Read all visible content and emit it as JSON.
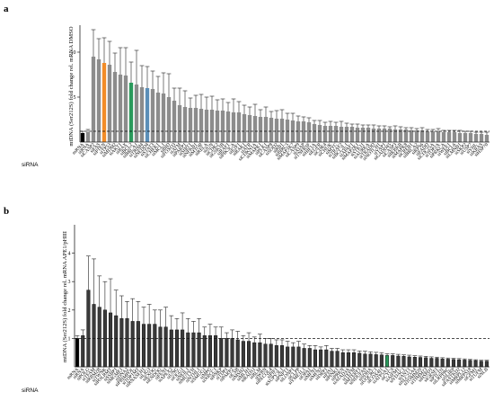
{
  "chart_data": [
    {
      "panel": "a",
      "type": "bar",
      "ylabel": "mtDNA (Ser212S) fold change rel. mRNA DMSO",
      "side_label": "siRNA",
      "ylim": [
        0,
        13
      ],
      "yticks": [
        5,
        10
      ],
      "reference_line": 1.2,
      "categories": [
        "mRNA",
        "siRNA",
        "siCASP2",
        "siFAS",
        "siPTEN",
        "siTP53",
        "siMDM2",
        "siAKT1",
        "siBAX",
        "siBCL2",
        "siBRCA1",
        "siTRIM4",
        "siNEDD4",
        "siSTAT3",
        "siCHEK1",
        "siMCL1",
        "siBID",
        "siFOXO3",
        "siATM",
        "siPARP1",
        "siSIRT1",
        "siNFKB1",
        "siMTOR",
        "siRELA",
        "siJUN",
        "siCDK2",
        "siGSK3B",
        "siRAF1",
        "siPIK3CA",
        "siE2F1",
        "siBAK1",
        "siATR",
        "siCDKN1A",
        "siMAPK1",
        "siPLK1",
        "siCASP8",
        "siSOD2",
        "siRB1",
        "siBIRC5",
        "siMAP3K7",
        "siCASP9",
        "siXIAP",
        "siTNFRSF",
        "siHIF1A",
        "siEGFR",
        "siCDK4",
        "siCHUK",
        "siMYC",
        "siTRAF2",
        "siBCL2L1",
        "siAPAF1",
        "siMAP2K1",
        "siSTK11",
        "siAURKA",
        "siTRADD",
        "siNOTCH1",
        "siYAP1",
        "siGADD45",
        "siCASP3",
        "siIKBKB",
        "siMAPK8",
        "siCREB1",
        "siBRCA2",
        "siRPS6",
        "siFADD",
        "siCDC25A",
        "siTOP2A",
        "siPRKCA",
        "siWEE1",
        "siBCL6",
        "siLMNB1",
        "siSKP2",
        "siUSP7",
        "siVHL",
        "siKRAS",
        "siHSP70"
      ],
      "values": [
        1.0,
        1.1,
        9.5,
        9.2,
        8.8,
        8.6,
        7.8,
        7.5,
        7.4,
        6.6,
        6.4,
        6.1,
        6.0,
        5.9,
        5.5,
        5.4,
        5.0,
        4.6,
        4.1,
        3.9,
        3.8,
        3.8,
        3.7,
        3.6,
        3.6,
        3.5,
        3.5,
        3.4,
        3.3,
        3.3,
        3.1,
        3.0,
        2.9,
        2.8,
        2.8,
        2.7,
        2.6,
        2.6,
        2.5,
        2.4,
        2.3,
        2.3,
        2.2,
        2.0,
        1.9,
        1.8,
        1.8,
        1.8,
        1.7,
        1.7,
        1.7,
        1.6,
        1.6,
        1.6,
        1.5,
        1.5,
        1.5,
        1.5,
        1.4,
        1.4,
        1.4,
        1.3,
        1.3,
        1.3,
        1.2,
        1.2,
        1.2,
        1.1,
        1.1,
        1.1,
        1.0,
        1.0,
        1.0,
        0.9,
        0.9,
        0.8
      ],
      "errors": [
        0.2,
        0.3,
        3.0,
        2.3,
        2.8,
        2.6,
        2.1,
        3.0,
        3.1,
        2.3,
        3.8,
        2.4,
        2.4,
        2.0,
        1.8,
        2.3,
        2.6,
        1.4,
        1.9,
        1.8,
        1.1,
        1.4,
        1.6,
        1.4,
        1.5,
        1.2,
        1.3,
        1.0,
        1.5,
        1.2,
        1.0,
        0.9,
        1.3,
        0.8,
        1.1,
        0.7,
        0.9,
        1.0,
        0.7,
        0.8,
        0.6,
        0.5,
        0.5,
        0.4,
        0.5,
        0.4,
        0.5,
        0.4,
        0.6,
        0.4,
        0.3,
        0.4,
        0.3,
        0.3,
        0.4,
        0.3,
        0.3,
        0.2,
        0.4,
        0.3,
        0.2,
        0.3,
        0.2,
        0.3,
        0.2,
        0.2,
        0.3,
        0.2,
        0.2,
        0.2,
        0.3,
        0.2,
        0.2,
        0.2,
        0.2,
        0.3
      ],
      "highlight": {
        "0": "#000000",
        "4": "#f28c28",
        "9": "#2a9a5c",
        "12": "#5b8fb8"
      },
      "bar_color": "#8c8c8c"
    },
    {
      "panel": "b",
      "type": "bar",
      "ylabel": "mtDNA (Ser212S) fold change rel. mRNA APE1/pHIII",
      "side_label": "siRNA",
      "ylim": [
        0,
        5
      ],
      "yticks": [
        1,
        2,
        3,
        4
      ],
      "reference_line": 1.0,
      "categories": [
        "mRNA",
        "siRNA",
        "siPOLG",
        "siTFAM",
        "siRRM2B",
        "siTWNK",
        "siPOLRMT",
        "siSSBP1",
        "siMGME1",
        "siDNA2",
        "siPRIMPOL",
        "siTOP1MT",
        "siRNASEH1",
        "siLIG3",
        "siEXOG",
        "siENDOG",
        "siFEN1",
        "siAPEX2",
        "siUNG",
        "siOGG1",
        "siNEIL1",
        "siMUTYH",
        "siNTHL1",
        "siSMUG1",
        "siMPG",
        "siXRCC1",
        "siPNKP",
        "siTDP1",
        "siPARP2",
        "siCSB",
        "siMSH2",
        "siMLH1",
        "siRAD51",
        "siBLM",
        "siWRN",
        "siRECQL4",
        "siPIF1",
        "siSUPV3L1",
        "siPNPT1",
        "siLONP1",
        "siCLPP",
        "siYME1L1",
        "siOPA1",
        "siMFN1",
        "siMFN2",
        "siDRP1",
        "siFIS1",
        "siPINK1",
        "siPRKN",
        "siATAD3A",
        "siTEFM",
        "siMTERF1",
        "siNDUFA9",
        "siSDHA",
        "siUQCRC1",
        "siCOX4I1",
        "siATP5A1",
        "siCYCS",
        "siAIFM1",
        "siVDAC1",
        "siANT1",
        "siSLC25A4",
        "siTOMM20",
        "siTIMM23",
        "siHSPD1",
        "siGRSF1",
        "siPTCD1",
        "siLRPPRC",
        "siSLIRP",
        "siFASTKD2",
        "siMRPL12",
        "siMRPS18",
        "siGFM1",
        "siTUFM",
        "siNLB"
      ],
      "values": [
        1.0,
        1.1,
        2.7,
        2.2,
        2.1,
        2.0,
        1.9,
        1.8,
        1.7,
        1.7,
        1.6,
        1.6,
        1.5,
        1.5,
        1.5,
        1.4,
        1.4,
        1.3,
        1.3,
        1.3,
        1.2,
        1.2,
        1.2,
        1.1,
        1.1,
        1.1,
        1.0,
        1.0,
        1.0,
        0.95,
        0.9,
        0.9,
        0.85,
        0.85,
        0.8,
        0.8,
        0.75,
        0.75,
        0.7,
        0.7,
        0.7,
        0.65,
        0.65,
        0.6,
        0.6,
        0.6,
        0.55,
        0.55,
        0.5,
        0.5,
        0.5,
        0.48,
        0.45,
        0.45,
        0.43,
        0.42,
        0.4,
        0.4,
        0.38,
        0.37,
        0.35,
        0.34,
        0.33,
        0.32,
        0.3,
        0.3,
        0.28,
        0.27,
        0.26,
        0.25,
        0.24,
        0.23,
        0.22,
        0.2,
        0.2
      ],
      "errors": [
        0.1,
        0.2,
        1.2,
        1.6,
        1.1,
        1.0,
        1.2,
        0.9,
        0.8,
        0.6,
        0.8,
        0.7,
        0.6,
        0.7,
        0.5,
        0.6,
        0.7,
        0.5,
        0.4,
        0.6,
        0.5,
        0.4,
        0.5,
        0.3,
        0.4,
        0.3,
        0.4,
        0.2,
        0.3,
        0.3,
        0.2,
        0.3,
        0.2,
        0.3,
        0.2,
        0.2,
        0.2,
        0.2,
        0.2,
        0.15,
        0.2,
        0.15,
        0.1,
        0.15,
        0.1,
        0.15,
        0.1,
        0.1,
        0.1,
        0.1,
        0.1,
        0.08,
        0.1,
        0.08,
        0.08,
        0.08,
        0.06,
        0.06,
        0.06,
        0.05,
        0.06,
        0.05,
        0.05,
        0.05,
        0.05,
        0.04,
        0.04,
        0.04,
        0.04,
        0.04,
        0.04,
        0.03,
        0.03,
        0.03,
        0.03
      ],
      "highlight": {
        "0": "#000000",
        "56": "#2a9a5c"
      },
      "bar_color": "#3a3a3a"
    }
  ]
}
